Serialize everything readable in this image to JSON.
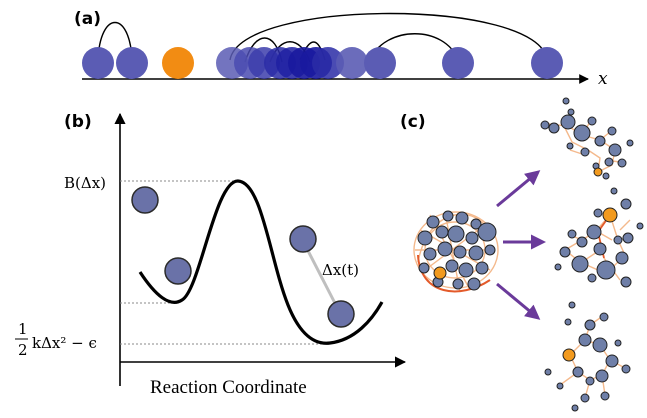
{
  "panel_a": {
    "label": "(a)",
    "axis_label": "x",
    "colors": {
      "particle": "#5b5cb4",
      "particle_dense": "#1a1a9e",
      "highlight": "#f28c13"
    }
  },
  "panel_b": {
    "label": "(b)",
    "y_label_top": "B(Δx)",
    "y_label_bottom_frac_num": "1",
    "y_label_bottom_frac_den": "2",
    "y_label_bottom_rest": "kΔx² − ϵ",
    "curve_label": "Δx(t)",
    "x_axis_title": "Reaction Coordinate",
    "colors": {
      "particle": "#6a72a8",
      "curve": "#000000",
      "connector": "#bfbfbf"
    }
  },
  "panel_c": {
    "label": "(c)",
    "colors": {
      "node": "#6f7fa8",
      "node_highlight": "#f29a1e",
      "edge": "#f4b98c",
      "edge_strong": "#e35a2a",
      "arrow": "#6a3a9a"
    }
  }
}
